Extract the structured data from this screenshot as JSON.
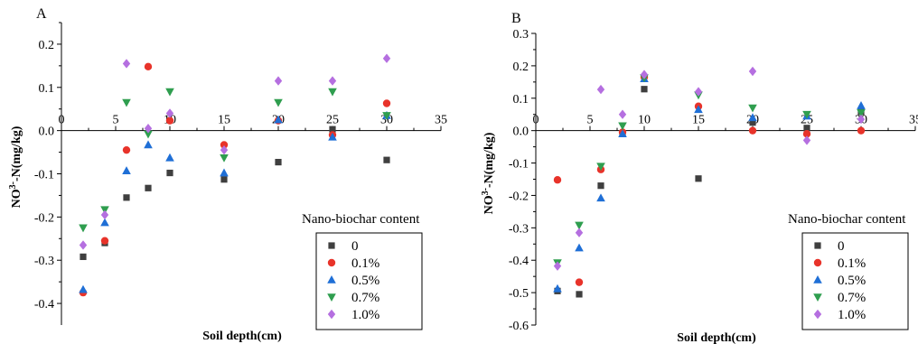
{
  "legend_title": "Nano-biochar content",
  "series_styles": [
    {
      "name": "0",
      "color": "#3f3f3f",
      "marker": "square"
    },
    {
      "name": "0.1%",
      "color": "#e8332a",
      "marker": "circle"
    },
    {
      "name": "0.5%",
      "color": "#1f6fd6",
      "marker": "triangle-up"
    },
    {
      "name": "0.7%",
      "color": "#2f9e4f",
      "marker": "triangle-down"
    },
    {
      "name": "1.0%",
      "color": "#b56fe0",
      "marker": "diamond"
    }
  ],
  "chart_data": [
    {
      "panel": "A",
      "type": "scatter",
      "xlabel": "Soil depth(cm)",
      "ylabel": "NO3--N(mg/kg)",
      "xlim": [
        0,
        35
      ],
      "ylim": [
        -0.45,
        0.25
      ],
      "xticks": [
        0,
        5,
        10,
        15,
        20,
        25,
        30,
        35
      ],
      "yticks": [
        -0.4,
        -0.3,
        -0.2,
        -0.1,
        0.0,
        0.1,
        0.2
      ],
      "ytick_labels": [
        "-0.4",
        "-0.3",
        "-0.2",
        "-0.1",
        "0.0",
        "0.1",
        "0.2"
      ],
      "legend_placement": "bottom-right",
      "series": [
        {
          "name": "0",
          "x": [
            2,
            4,
            6,
            8,
            10,
            15,
            20,
            25,
            30
          ],
          "y": [
            -0.292,
            -0.26,
            -0.155,
            -0.133,
            -0.098,
            -0.113,
            -0.073,
            0.003,
            -0.068
          ]
        },
        {
          "name": "0.1%",
          "x": [
            2,
            4,
            6,
            8,
            10,
            15,
            20,
            25,
            30
          ],
          "y": [
            -0.375,
            -0.255,
            -0.045,
            0.148,
            0.023,
            -0.033,
            0.023,
            -0.01,
            0.063
          ]
        },
        {
          "name": "0.5%",
          "x": [
            2,
            4,
            6,
            8,
            10,
            15,
            20,
            25,
            30
          ],
          "y": [
            -0.368,
            -0.213,
            -0.093,
            -0.033,
            -0.063,
            -0.098,
            0.025,
            -0.015,
            0.035
          ]
        },
        {
          "name": "0.7%",
          "x": [
            2,
            4,
            6,
            8,
            10,
            15,
            20,
            25,
            30
          ],
          "y": [
            -0.225,
            -0.183,
            0.065,
            -0.008,
            0.09,
            -0.063,
            0.065,
            0.09,
            0.035
          ]
        },
        {
          "name": "1.0%",
          "x": [
            2,
            4,
            6,
            8,
            10,
            15,
            20,
            25,
            30
          ],
          "y": [
            -0.265,
            -0.195,
            0.155,
            0.005,
            0.04,
            -0.045,
            0.115,
            0.115,
            0.167
          ]
        }
      ]
    },
    {
      "panel": "B",
      "type": "scatter",
      "xlabel": "Soil depth(cm)",
      "ylabel": "NO3--N(mg/kg)",
      "xlim": [
        0,
        35
      ],
      "ylim": [
        -0.6,
        0.3
      ],
      "xticks": [
        0,
        5,
        10,
        15,
        20,
        25,
        30,
        35
      ],
      "yticks": [
        -0.6,
        -0.5,
        -0.4,
        -0.3,
        -0.2,
        -0.1,
        0.0,
        0.1,
        0.2,
        0.3
      ],
      "ytick_labels": [
        "-0.6",
        "-0.5",
        "-0.4",
        "-0.3",
        "-0.2",
        "-0.1",
        "0.0",
        "0.1",
        "0.2",
        "0.3"
      ],
      "legend_placement": "bottom-right",
      "series": [
        {
          "name": "0",
          "x": [
            2,
            4,
            6,
            8,
            10,
            15,
            20,
            25,
            30
          ],
          "y": [
            -0.495,
            -0.505,
            -0.17,
            -0.01,
            0.128,
            -0.148,
            0.025,
            0.008,
            0.058
          ]
        },
        {
          "name": "0.1%",
          "x": [
            2,
            4,
            6,
            8,
            10,
            15,
            20,
            25,
            30
          ],
          "y": [
            -0.152,
            -0.468,
            -0.12,
            -0.005,
            0.165,
            0.075,
            0.0,
            -0.01,
            0.0
          ]
        },
        {
          "name": "0.5%",
          "x": [
            2,
            4,
            6,
            8,
            10,
            15,
            20,
            25,
            30
          ],
          "y": [
            -0.488,
            -0.362,
            -0.208,
            -0.01,
            0.16,
            0.065,
            0.04,
            0.045,
            0.077
          ]
        },
        {
          "name": "0.7%",
          "x": [
            2,
            4,
            6,
            8,
            10,
            15,
            20,
            25,
            30
          ],
          "y": [
            -0.408,
            -0.292,
            -0.11,
            0.015,
            0.163,
            0.11,
            0.07,
            0.05,
            0.055
          ]
        },
        {
          "name": "1.0%",
          "x": [
            2,
            4,
            6,
            8,
            10,
            15,
            20,
            25,
            30
          ],
          "y": [
            -0.418,
            -0.315,
            0.127,
            0.05,
            0.173,
            0.12,
            0.183,
            -0.03,
            0.035
          ]
        }
      ]
    }
  ]
}
